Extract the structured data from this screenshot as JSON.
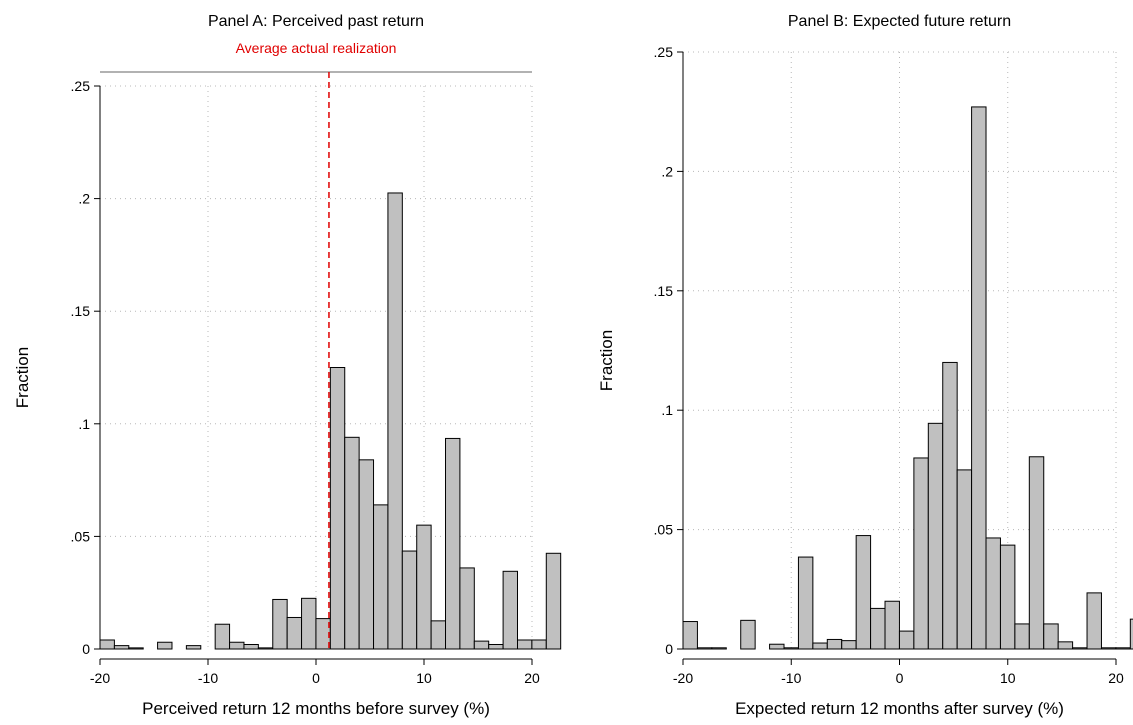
{
  "chart_data": [
    {
      "type": "bar",
      "title": "Panel A: Perceived past return",
      "xlabel": "Perceived return 12 months before survey (%)",
      "ylabel": "Fraction",
      "xlim": [
        -20,
        20
      ],
      "ylim": [
        0,
        0.25
      ],
      "xticks": [
        -20,
        -10,
        0,
        10,
        20
      ],
      "xtick_labels": [
        "-20",
        "-10",
        "0",
        "10",
        "20"
      ],
      "yticks": [
        0,
        0.05,
        0.1,
        0.15,
        0.2,
        0.25
      ],
      "ytick_labels": [
        "0",
        ".05",
        ".1",
        ".15",
        ".2",
        ".25"
      ],
      "grid": true,
      "bin_width": 1.333,
      "bin_start": -20,
      "values": [
        0.004,
        0.0015,
        0.0005,
        0.0,
        0.003,
        0.0,
        0.0015,
        0.0,
        0.011,
        0.003,
        0.002,
        0.0005,
        0.022,
        0.014,
        0.0225,
        0.0135,
        0.125,
        0.094,
        0.084,
        0.064,
        0.2025,
        0.0435,
        0.055,
        0.0125,
        0.0935,
        0.036,
        0.0035,
        0.002,
        0.0345,
        0.004,
        0.004,
        0.0425
      ],
      "reference_line": {
        "x": 1.2,
        "label": "Average actual realization",
        "color": "#e00000"
      }
    },
    {
      "type": "bar",
      "title": "Panel B: Expected future return",
      "xlabel": "Expected return 12 months after survey (%)",
      "ylabel": "Fraction",
      "xlim": [
        -20,
        20
      ],
      "ylim": [
        0,
        0.25
      ],
      "xticks": [
        -20,
        -10,
        0,
        10,
        20
      ],
      "xtick_labels": [
        "-20",
        "-10",
        "0",
        "10",
        "20"
      ],
      "yticks": [
        0,
        0.05,
        0.1,
        0.15,
        0.2,
        0.25
      ],
      "ytick_labels": [
        "0",
        ".05",
        ".1",
        ".15",
        ".2",
        ".25"
      ],
      "grid": true,
      "bin_width": 1.333,
      "bin_start": -20,
      "values": [
        0.0115,
        0.0005,
        0.0005,
        0.0,
        0.012,
        0.0,
        0.002,
        0.0005,
        0.0385,
        0.0025,
        0.004,
        0.0035,
        0.0475,
        0.017,
        0.02,
        0.0075,
        0.08,
        0.0945,
        0.12,
        0.075,
        0.227,
        0.0465,
        0.0435,
        0.0105,
        0.0805,
        0.0105,
        0.003,
        0.0005,
        0.0235,
        0.0005,
        0.0005,
        0.0125
      ]
    }
  ]
}
